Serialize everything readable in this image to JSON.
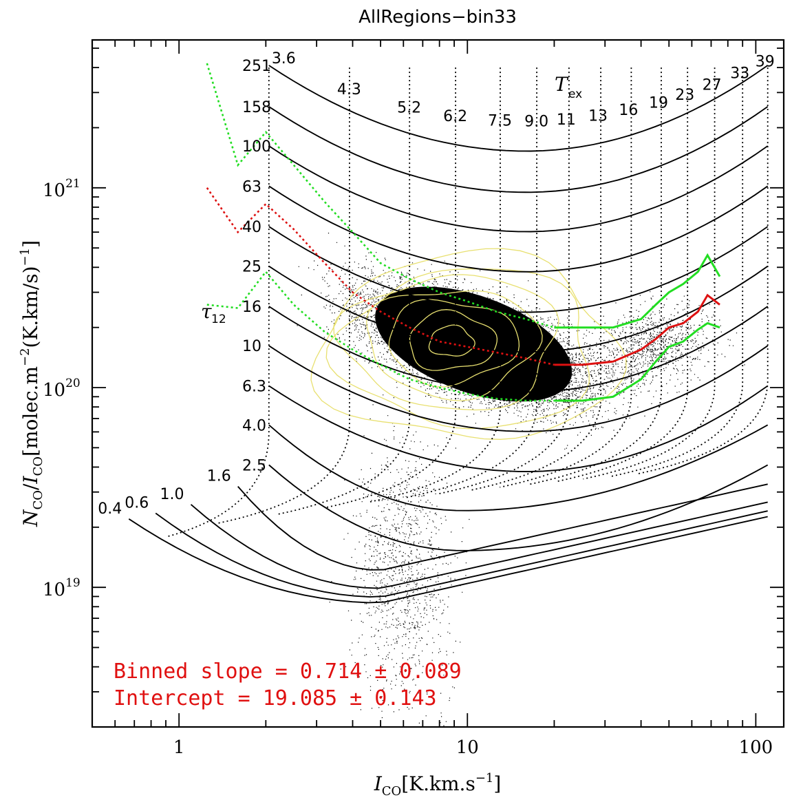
{
  "chart_data": {
    "type": "scatter",
    "title": "AllRegions−bin33",
    "xlabel": {
      "sym": "I",
      "sub": "CO",
      "unit": "[K.km.s",
      "exp": "−1",
      "close": "]"
    },
    "ylabel": {
      "sym1": "N",
      "sub1": "CO",
      "slash": "/",
      "sym2": "I",
      "sub2": "CO",
      "unit": "[molec.m",
      "exp1": "−2",
      "mid": "(K.km/s)",
      "exp2": "−1",
      "close": "]"
    },
    "xscale": "log",
    "yscale": "log",
    "xlim": [
      0.5,
      125
    ],
    "ylim": [
      2e+18,
      5.5e+21
    ],
    "xticklabels": [
      {
        "v": 1,
        "t": "1"
      },
      {
        "v": 10,
        "t": "10"
      },
      {
        "v": 100,
        "t": "100"
      }
    ],
    "yticklabels": [
      {
        "v": 1e+19,
        "b": "10",
        "e": "19"
      },
      {
        "v": 1e+20,
        "b": "10",
        "e": "20"
      },
      {
        "v": 1e+21,
        "b": "10",
        "e": "21"
      }
    ],
    "tau_symbol": "τ",
    "tau_sub": "12",
    "tex_symbol": "T",
    "tex_sub": "ex",
    "tau_levels": [
      {
        "t": "251",
        "tau": 251
      },
      {
        "t": "158",
        "tau": 158
      },
      {
        "t": "100",
        "tau": 100
      },
      {
        "t": "63",
        "tau": 63
      },
      {
        "t": "40",
        "tau": 40
      },
      {
        "t": "25",
        "tau": 25
      },
      {
        "t": "16",
        "tau": 16
      },
      {
        "t": "10",
        "tau": 10
      },
      {
        "t": "6.3",
        "tau": 6.3
      },
      {
        "t": "4.0",
        "tau": 4.0
      },
      {
        "t": "2.5",
        "tau": 2.5
      },
      {
        "t": "1.6",
        "tau": 1.6
      },
      {
        "t": "1.0",
        "tau": 1.0
      },
      {
        "t": "0.6",
        "tau": 0.6
      },
      {
        "t": "0.4",
        "tau": 0.4
      }
    ],
    "tex_levels": [
      {
        "t": "3.6",
        "x": 2.05
      },
      {
        "t": "4.3",
        "x": 3.9
      },
      {
        "t": "5.2",
        "x": 6.3
      },
      {
        "t": "6.2",
        "x": 9.1
      },
      {
        "t": "7.5",
        "x": 13.0
      },
      {
        "t": "9.0",
        "x": 17.4
      },
      {
        "t": "11",
        "x": 22.5
      },
      {
        "t": "13",
        "x": 29
      },
      {
        "t": "16",
        "x": 37
      },
      {
        "t": "19",
        "x": 47
      },
      {
        "t": "23",
        "x": 58
      },
      {
        "t": "27",
        "x": 72
      },
      {
        "t": "33",
        "x": 90
      },
      {
        "t": "39",
        "x": 110
      }
    ],
    "binned_median": {
      "x": [
        1.25,
        1.6,
        2.0,
        2.5,
        3.2,
        4.0,
        5.0,
        6.3,
        8.0,
        10,
        12.6,
        16,
        20,
        25,
        32,
        40,
        45,
        50,
        56,
        63,
        68,
        75
      ],
      "y": [
        1e+21,
        6e+20,
        8.3e+20,
        6.2e+20,
        4.2e+20,
        3e+20,
        2.4e+20,
        2e+20,
        1.7e+20,
        1.6e+20,
        1.5e+20,
        1.4e+20,
        1.3e+20,
        1.3e+20,
        1.35e+20,
        1.55e+20,
        1.75e+20,
        2e+20,
        2.1e+20,
        2.4e+20,
        2.9e+20,
        2.6e+20
      ]
    },
    "binned_upper": {
      "x": [
        1.25,
        1.6,
        2.0,
        2.5,
        3.2,
        4.0,
        5.0,
        6.3,
        8.0,
        10,
        12.6,
        16,
        20,
        25,
        32,
        40,
        45,
        50,
        56,
        63,
        68,
        75
      ],
      "y": [
        4.2e+21,
        1.3e+21,
        1.9e+21,
        1.3e+21,
        8.5e+20,
        6e+20,
        4.2e+20,
        3.5e+20,
        3e+20,
        2.7e+20,
        2.4e+20,
        2.2e+20,
        2e+20,
        2e+20,
        2e+20,
        2.2e+20,
        2.6e+20,
        3e+20,
        3.3e+20,
        3.8e+20,
        4.6e+20,
        3.6e+20
      ]
    },
    "binned_lower": {
      "x": [
        1.25,
        1.6,
        2.0,
        2.5,
        3.2,
        4.0,
        5.0,
        6.3,
        8.0,
        10,
        12.6,
        16,
        20,
        25,
        32,
        40,
        45,
        50,
        56,
        63,
        68,
        75
      ],
      "y": [
        2.6e+20,
        2.5e+20,
        3.8e+20,
        2.6e+20,
        1.9e+20,
        1.55e+20,
        1.3e+20,
        1.1e+20,
        1e+20,
        9.3e+19,
        8.8e+19,
        8.6e+19,
        8.6e+19,
        8.6e+19,
        9e+19,
        1.1e+20,
        1.35e+20,
        1.6e+20,
        1.7e+20,
        1.95e+20,
        2.1e+20,
        2e+20
      ]
    },
    "annotations": {
      "slope": "Binned slope = 0.714 ± 0.089",
      "intercept": "Intercept = 19.085 ± 0.143"
    },
    "colors": {
      "median": "#dd1111",
      "bounds": "#22dd22",
      "contours": "#e8e070",
      "points": "#000000",
      "text_red": "#e01010"
    }
  }
}
